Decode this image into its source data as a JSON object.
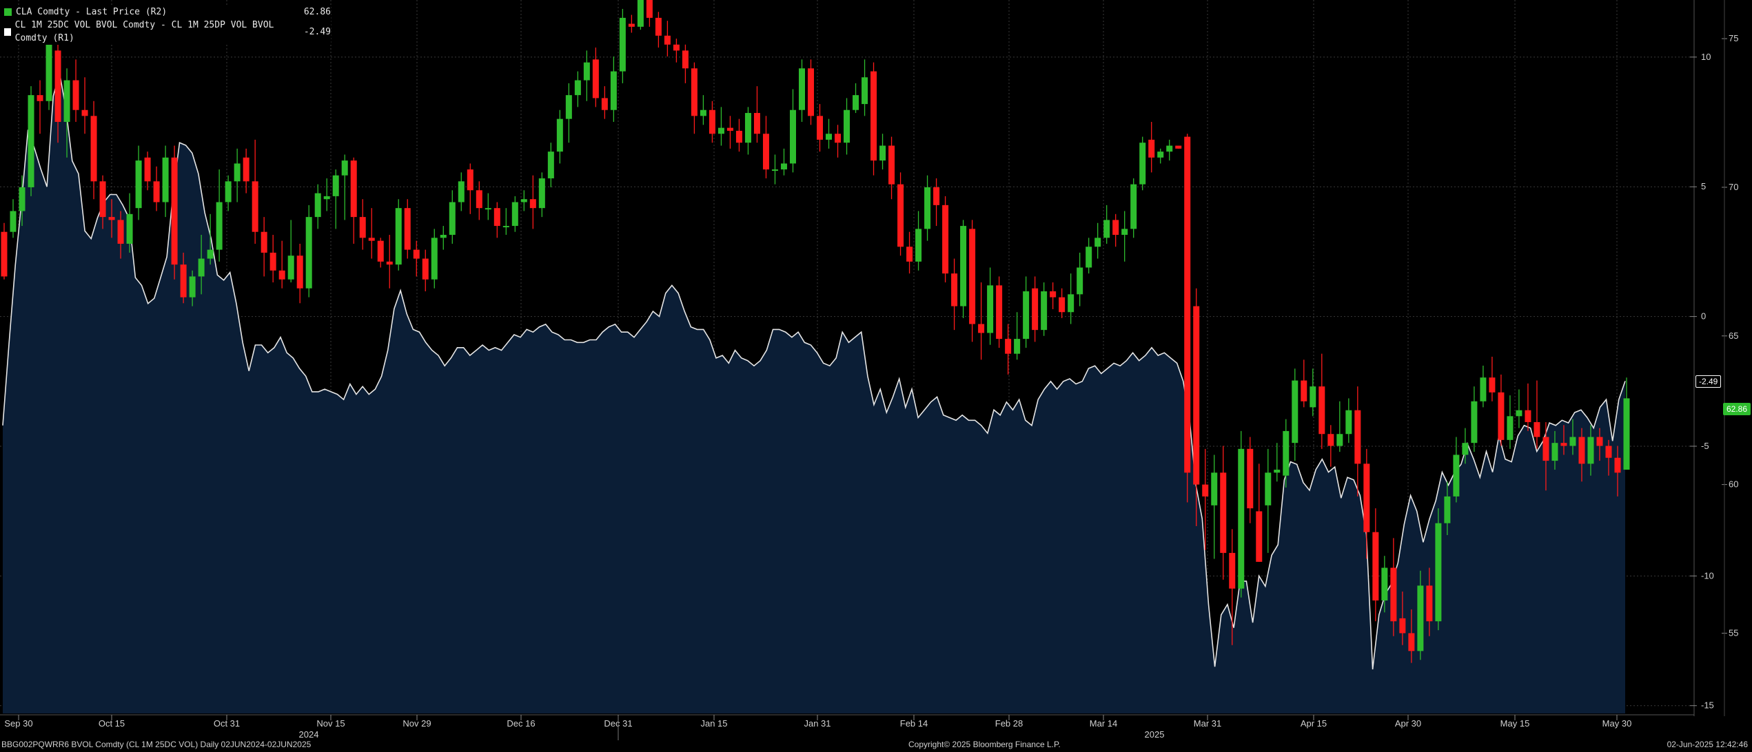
{
  "legend": {
    "series1_label": "CLA Comdty - Last Price (R2)",
    "series1_value": "62.86",
    "series2_label": "CL 1M 25DC VOL BVOL Comdty - CL 1M 25DP VOL BVOL Comdty (R1)",
    "series2_value": "-2.49"
  },
  "footer": {
    "left": "BBG002PQWRR6 BVOL Comdty (CL 1M 25DC VOL)  Daily 02JUN2024-02JUN2025",
    "center": "Copyright© 2025 Bloomberg Finance L.P.",
    "right": "02-Jun-2025 12:42:46"
  },
  "badges": {
    "skew_last": "-2.49",
    "price_last": "62.86"
  },
  "colors": {
    "up": "#2ebd2e",
    "down": "#ff1a1a",
    "area_fill": "#0b1e36",
    "line": "#e6e6e6",
    "background": "#000000"
  },
  "chart_data": {
    "type": "candlestick+area",
    "x_ticks": [
      "Sep 30",
      "Oct 15",
      "Oct 31",
      "Nov 15",
      "Nov 29",
      "Dec 16",
      "Dec 31",
      "Jan 15",
      "Jan 31",
      "Feb 14",
      "Feb 28",
      "Mar 14",
      "Mar 31",
      "Apr 15",
      "Apr 30",
      "May 15",
      "May 30"
    ],
    "year_labels": [
      "2024",
      "2025"
    ],
    "axis_r1": {
      "ticks": [
        10,
        5,
        0,
        -5,
        -10,
        -15
      ],
      "range": [
        -15.3,
        12.2
      ]
    },
    "axis_r2": {
      "ticks": [
        75,
        70,
        65,
        60,
        55
      ],
      "range": [
        52.3,
        76.3
      ]
    },
    "candles": [
      [
        68.5,
        67.0,
        68.8,
        66.9
      ],
      [
        68.5,
        69.2,
        69.6,
        68.3
      ],
      [
        69.2,
        70.0,
        70.4,
        68.7
      ],
      [
        70.0,
        73.1,
        73.4,
        69.7
      ],
      [
        73.1,
        72.9,
        73.6,
        71.8
      ],
      [
        72.9,
        74.8,
        75.0,
        72.6
      ],
      [
        74.6,
        72.2,
        74.9,
        71.5
      ],
      [
        72.2,
        73.6,
        74.0,
        71.0
      ],
      [
        73.6,
        72.6,
        74.3,
        72.2
      ],
      [
        72.6,
        72.4,
        73.7,
        71.8
      ],
      [
        72.4,
        70.2,
        72.9,
        69.6
      ],
      [
        70.2,
        69.0,
        70.4,
        68.6
      ],
      [
        69.0,
        68.9,
        69.6,
        68.3
      ],
      [
        68.9,
        68.1,
        69.2,
        67.6
      ],
      [
        68.1,
        69.1,
        69.8,
        67.8
      ],
      [
        69.3,
        70.9,
        71.4,
        68.9
      ],
      [
        71.0,
        70.2,
        71.2,
        69.9
      ],
      [
        70.2,
        69.5,
        70.7,
        69.2
      ],
      [
        69.5,
        71.0,
        71.4,
        69.0
      ],
      [
        71.0,
        67.4,
        71.4,
        66.9
      ],
      [
        67.4,
        66.3,
        67.8,
        66.1
      ],
      [
        66.3,
        67.0,
        67.2,
        66.0
      ],
      [
        67.0,
        67.6,
        68.4,
        66.4
      ],
      [
        67.6,
        67.9,
        69.1,
        67.4
      ],
      [
        67.9,
        69.5,
        70.6,
        67.5
      ],
      [
        69.5,
        70.2,
        70.4,
        69.2
      ],
      [
        70.2,
        70.8,
        71.3,
        69.5
      ],
      [
        71.0,
        70.2,
        71.3,
        69.8
      ],
      [
        70.2,
        68.5,
        71.6,
        68.1
      ],
      [
        68.5,
        67.8,
        69.0,
        67.0
      ],
      [
        67.8,
        67.2,
        68.4,
        66.8
      ],
      [
        67.2,
        66.9,
        68.2,
        66.6
      ],
      [
        66.9,
        67.7,
        68.9,
        66.8
      ],
      [
        67.7,
        66.6,
        68.1,
        66.1
      ],
      [
        66.6,
        69.0,
        69.4,
        66.3
      ],
      [
        69.0,
        69.8,
        70.1,
        68.6
      ],
      [
        69.6,
        69.7,
        70.3,
        69.2
      ],
      [
        69.7,
        70.4,
        70.6,
        68.6
      ],
      [
        70.4,
        70.9,
        71.1,
        68.9
      ],
      [
        70.9,
        69.0,
        71.0,
        68.1
      ],
      [
        69.0,
        68.3,
        69.6,
        67.9
      ],
      [
        68.3,
        68.2,
        69.3,
        67.6
      ],
      [
        68.2,
        67.5,
        68.3,
        67.3
      ],
      [
        67.5,
        67.4,
        68.4,
        66.6
      ],
      [
        67.4,
        69.3,
        69.6,
        67.2
      ],
      [
        69.3,
        67.9,
        69.6,
        67.6
      ],
      [
        67.9,
        67.6,
        68.2,
        67.0
      ],
      [
        67.6,
        66.9,
        67.9,
        66.5
      ],
      [
        66.9,
        68.3,
        68.6,
        66.6
      ],
      [
        68.3,
        68.4,
        68.7,
        67.9
      ],
      [
        68.4,
        69.5,
        69.9,
        68.1
      ],
      [
        69.5,
        70.2,
        70.5,
        69.2
      ],
      [
        70.6,
        69.9,
        70.8,
        69.1
      ],
      [
        69.9,
        69.3,
        70.2,
        68.9
      ],
      [
        69.3,
        69.3,
        69.8,
        68.9
      ],
      [
        69.3,
        68.7,
        69.5,
        68.3
      ],
      [
        68.7,
        68.7,
        69.3,
        68.4
      ],
      [
        68.7,
        69.5,
        69.7,
        68.5
      ],
      [
        69.5,
        69.6,
        69.9,
        69.2
      ],
      [
        69.6,
        69.3,
        70.4,
        68.6
      ],
      [
        69.3,
        70.3,
        70.5,
        69.0
      ],
      [
        70.3,
        71.2,
        71.5,
        70.0
      ],
      [
        71.2,
        72.3,
        72.6,
        70.8
      ],
      [
        72.3,
        73.1,
        73.5,
        71.5
      ],
      [
        73.1,
        73.6,
        73.9,
        72.7
      ],
      [
        73.6,
        74.2,
        74.6,
        72.9
      ],
      [
        74.3,
        73.0,
        74.7,
        72.7
      ],
      [
        73.0,
        72.6,
        73.4,
        72.3
      ],
      [
        72.6,
        73.9,
        74.4,
        72.2
      ],
      [
        73.9,
        75.7,
        76.0,
        73.5
      ],
      [
        75.5,
        75.4,
        75.8,
        75.2
      ],
      [
        75.4,
        76.3,
        76.7,
        75.3
      ],
      [
        76.6,
        75.7,
        76.7,
        75.4
      ],
      [
        75.7,
        75.1,
        75.9,
        74.7
      ],
      [
        75.1,
        74.8,
        75.6,
        74.4
      ],
      [
        74.8,
        74.6,
        75.0,
        74.2
      ],
      [
        74.6,
        74.0,
        74.8,
        73.5
      ],
      [
        74.0,
        72.4,
        74.2,
        71.8
      ],
      [
        72.4,
        72.6,
        73.1,
        72.1
      ],
      [
        72.6,
        71.8,
        72.9,
        71.5
      ],
      [
        71.8,
        72.0,
        72.7,
        71.4
      ],
      [
        72.0,
        71.9,
        72.4,
        71.3
      ],
      [
        71.9,
        71.5,
        72.3,
        71.2
      ],
      [
        71.5,
        72.5,
        72.7,
        71.1
      ],
      [
        72.5,
        71.8,
        73.4,
        71.5
      ],
      [
        71.8,
        70.6,
        72.4,
        70.3
      ],
      [
        70.6,
        70.6,
        71.1,
        70.1
      ],
      [
        70.6,
        70.8,
        71.3,
        70.4
      ],
      [
        70.8,
        72.6,
        73.3,
        70.5
      ],
      [
        72.6,
        74.0,
        74.3,
        72.2
      ],
      [
        74.0,
        72.4,
        74.3,
        72.1
      ],
      [
        72.4,
        71.6,
        72.8,
        71.2
      ],
      [
        71.6,
        71.8,
        72.3,
        71.3
      ],
      [
        71.8,
        71.5,
        72.1,
        71.0
      ],
      [
        71.5,
        72.6,
        73.0,
        71.1
      ],
      [
        72.6,
        73.1,
        73.5,
        72.5
      ],
      [
        72.8,
        73.7,
        74.3,
        72.4
      ],
      [
        73.9,
        70.9,
        74.2,
        70.4
      ],
      [
        70.9,
        71.4,
        71.8,
        70.6
      ],
      [
        71.4,
        70.1,
        71.7,
        69.6
      ],
      [
        70.1,
        68.0,
        70.5,
        67.7
      ],
      [
        68.0,
        67.5,
        68.5,
        67.1
      ],
      [
        67.5,
        68.6,
        69.2,
        67.2
      ],
      [
        68.6,
        70.0,
        70.4,
        68.2
      ],
      [
        70.0,
        69.4,
        70.3,
        68.7
      ],
      [
        69.4,
        67.1,
        69.7,
        66.8
      ],
      [
        67.1,
        66.0,
        67.6,
        65.2
      ],
      [
        66.0,
        68.7,
        68.9,
        65.6
      ],
      [
        68.6,
        65.4,
        68.9,
        64.8
      ],
      [
        65.4,
        65.1,
        66.8,
        64.2
      ],
      [
        65.1,
        66.7,
        67.3,
        64.7
      ],
      [
        66.7,
        64.9,
        67.0,
        64.6
      ],
      [
        64.9,
        64.4,
        65.4,
        63.7
      ],
      [
        64.4,
        64.9,
        65.8,
        64.2
      ],
      [
        64.9,
        66.5,
        67.0,
        64.6
      ],
      [
        66.6,
        65.2,
        67.0,
        64.8
      ],
      [
        65.2,
        66.5,
        66.8,
        65.0
      ],
      [
        66.5,
        66.3,
        66.8,
        65.9
      ],
      [
        66.3,
        65.8,
        66.6,
        65.6
      ],
      [
        65.8,
        66.4,
        67.1,
        65.4
      ],
      [
        66.4,
        67.3,
        67.8,
        66.0
      ],
      [
        67.3,
        68.0,
        68.3,
        67.1
      ],
      [
        68.0,
        68.3,
        68.8,
        67.6
      ],
      [
        68.3,
        68.9,
        69.4,
        68.1
      ],
      [
        68.9,
        68.4,
        69.1,
        68.0
      ],
      [
        68.4,
        68.6,
        69.2,
        67.5
      ],
      [
        68.6,
        70.1,
        70.3,
        68.3
      ],
      [
        70.1,
        71.5,
        71.7,
        69.9
      ],
      [
        71.6,
        71.0,
        72.2,
        70.5
      ],
      [
        71.0,
        71.2,
        71.3,
        70.8
      ],
      [
        71.2,
        71.4,
        71.6,
        70.9
      ],
      [
        71.4,
        71.3,
        71.4,
        71.3
      ],
      [
        71.7,
        60.4,
        71.8,
        59.4
      ],
      [
        66.0,
        60.0,
        66.6,
        58.6
      ],
      [
        60.0,
        59.6,
        61.2,
        57.8
      ],
      [
        59.3,
        60.4,
        61.0,
        57.5
      ],
      [
        60.4,
        57.7,
        61.3,
        56.8
      ],
      [
        57.7,
        56.5,
        58.5,
        54.6
      ],
      [
        56.5,
        61.2,
        61.8,
        56.2
      ],
      [
        61.2,
        59.2,
        61.6,
        58.7
      ],
      [
        59.1,
        57.4,
        60.7,
        57.4
      ],
      [
        59.3,
        60.4,
        61.2,
        57.7
      ],
      [
        60.4,
        60.5,
        61.4,
        60.1
      ],
      [
        60.3,
        61.8,
        62.2,
        59.9
      ],
      [
        61.4,
        63.5,
        63.9,
        60.8
      ],
      [
        63.5,
        62.8,
        64.2,
        62.6
      ],
      [
        62.6,
        63.3,
        63.9,
        62.3
      ],
      [
        63.3,
        61.7,
        64.4,
        61.2
      ],
      [
        61.7,
        61.3,
        62.0,
        60.6
      ],
      [
        61.3,
        61.7,
        62.8,
        61.1
      ],
      [
        61.7,
        62.5,
        62.9,
        61.4
      ],
      [
        62.5,
        60.7,
        63.3,
        59.6
      ],
      [
        60.7,
        58.4,
        61.2,
        57.5
      ],
      [
        58.4,
        56.1,
        59.2,
        55.4
      ],
      [
        56.1,
        57.2,
        57.6,
        55.7
      ],
      [
        57.2,
        55.4,
        58.2,
        54.9
      ],
      [
        55.5,
        55.0,
        56.4,
        54.6
      ],
      [
        55.0,
        54.4,
        55.8,
        54.0
      ],
      [
        54.4,
        56.6,
        57.1,
        54.1
      ],
      [
        56.6,
        55.4,
        57.2,
        54.9
      ],
      [
        55.4,
        58.7,
        59.2,
        55.1
      ],
      [
        58.7,
        59.6,
        60.1,
        58.3
      ],
      [
        59.6,
        61.0,
        61.6,
        59.4
      ],
      [
        61.0,
        61.4,
        61.9,
        60.7
      ],
      [
        61.4,
        62.8,
        63.3,
        61.1
      ],
      [
        62.8,
        63.6,
        64.0,
        62.6
      ],
      [
        63.6,
        63.1,
        64.3,
        62.8
      ],
      [
        63.1,
        61.5,
        63.7,
        61.3
      ],
      [
        61.5,
        62.3,
        63.0,
        61.2
      ],
      [
        62.3,
        62.5,
        63.2,
        61.9
      ],
      [
        62.5,
        62.1,
        63.4,
        61.8
      ],
      [
        62.1,
        61.6,
        63.5,
        61.2
      ],
      [
        61.6,
        60.8,
        62.1,
        59.8
      ],
      [
        60.8,
        61.4,
        61.8,
        60.5
      ],
      [
        61.4,
        61.3,
        62.0,
        61.0
      ],
      [
        61.3,
        61.6,
        62.2,
        61.0
      ],
      [
        61.6,
        60.7,
        61.9,
        60.1
      ],
      [
        60.7,
        61.6,
        62.0,
        60.3
      ],
      [
        61.6,
        61.3,
        61.9,
        60.8
      ],
      [
        61.3,
        60.9,
        61.5,
        60.3
      ],
      [
        60.9,
        60.4,
        61.3,
        59.6
      ],
      [
        60.5,
        62.9,
        63.6,
        60.5
      ]
    ],
    "skew_series": [
      -4.2,
      -1.0,
      2.0,
      4.5,
      7.2,
      6.5,
      5.7,
      5.0,
      8.5,
      9.4,
      8.0,
      6.0,
      5.5,
      3.3,
      3.0,
      3.8,
      4.4,
      4.7,
      4.7,
      4.3,
      3.8,
      1.5,
      1.2,
      0.5,
      0.7,
      1.5,
      2.3,
      4.8,
      6.7,
      6.6,
      6.3,
      5.5,
      4.0,
      3.0,
      1.6,
      1.4,
      1.7,
      0.5,
      -1.0,
      -2.1,
      -1.1,
      -1.1,
      -1.4,
      -1.2,
      -0.8,
      -1.4,
      -1.6,
      -2.0,
      -2.3,
      -2.9,
      -2.9,
      -2.8,
      -2.9,
      -3.0,
      -3.2,
      -2.6,
      -3.0,
      -2.7,
      -3.0,
      -2.8,
      -2.3,
      -1.3,
      0.3,
      1.0,
      0.1,
      -0.5,
      -0.6,
      -1.0,
      -1.3,
      -1.5,
      -1.9,
      -1.6,
      -1.2,
      -1.2,
      -1.5,
      -1.3,
      -1.1,
      -1.3,
      -1.2,
      -1.3,
      -1.0,
      -0.7,
      -0.8,
      -0.5,
      -0.6,
      -0.4,
      -0.3,
      -0.6,
      -0.7,
      -0.9,
      -0.9,
      -1.0,
      -1.0,
      -0.9,
      -0.9,
      -0.6,
      -0.4,
      -0.3,
      -0.6,
      -0.6,
      -0.8,
      -0.5,
      -0.2,
      0.2,
      0.0,
      0.9,
      1.2,
      0.9,
      0.2,
      -0.4,
      -0.5,
      -0.5,
      -0.9,
      -1.6,
      -1.5,
      -1.8,
      -1.3,
      -1.6,
      -1.7,
      -1.9,
      -1.7,
      -1.3,
      -0.5,
      -0.5,
      -0.6,
      -0.8,
      -0.6,
      -1.0,
      -1.1,
      -1.4,
      -1.8,
      -1.9,
      -1.6,
      -0.6,
      -1.0,
      -0.8,
      -0.6,
      -2.3,
      -3.4,
      -2.8,
      -3.7,
      -3.1,
      -2.4,
      -3.5,
      -2.8,
      -3.9,
      -3.6,
      -3.3,
      -3.1,
      -3.8,
      -3.9,
      -4.0,
      -3.8,
      -4.0,
      -4.0,
      -4.2,
      -4.5,
      -3.6,
      -3.8,
      -3.3,
      -3.6,
      -3.2,
      -4.0,
      -4.2,
      -3.2,
      -2.8,
      -2.5,
      -2.8,
      -2.5,
      -2.4,
      -2.6,
      -2.5,
      -2.0,
      -1.9,
      -2.2,
      -2.0,
      -1.8,
      -1.9,
      -1.7,
      -1.4,
      -1.7,
      -1.5,
      -1.2,
      -1.5,
      -1.4,
      -1.6,
      -1.8,
      -2.5,
      -4.0,
      -6.5,
      -7.8,
      -11.1,
      -13.5,
      -11.5,
      -11.1,
      -12.0,
      -10.2,
      -10.2,
      -11.8,
      -10.0,
      -10.4,
      -9.2,
      -8.8,
      -6.3,
      -5.6,
      -5.7,
      -6.4,
      -6.7,
      -5.9,
      -5.5,
      -6.0,
      -5.8,
      -7.0,
      -6.2,
      -6.3,
      -6.9,
      -8.4,
      -13.6,
      -11.5,
      -10.7,
      -10.3,
      -9.5,
      -8.0,
      -6.9,
      -7.5,
      -8.7,
      -7.8,
      -7.1,
      -6.0,
      -6.5,
      -6.0,
      -5.7,
      -4.9,
      -5.5,
      -6.2,
      -5.2,
      -6.0,
      -4.6,
      -5.5,
      -5.6,
      -4.6,
      -4.2,
      -4.3,
      -5.2,
      -4.8,
      -4.1,
      -4.2,
      -4.0,
      -4.1,
      -3.7,
      -3.6,
      -3.9,
      -4.3,
      -3.5,
      -3.2,
      -4.8,
      -3.2,
      -2.49
    ]
  }
}
